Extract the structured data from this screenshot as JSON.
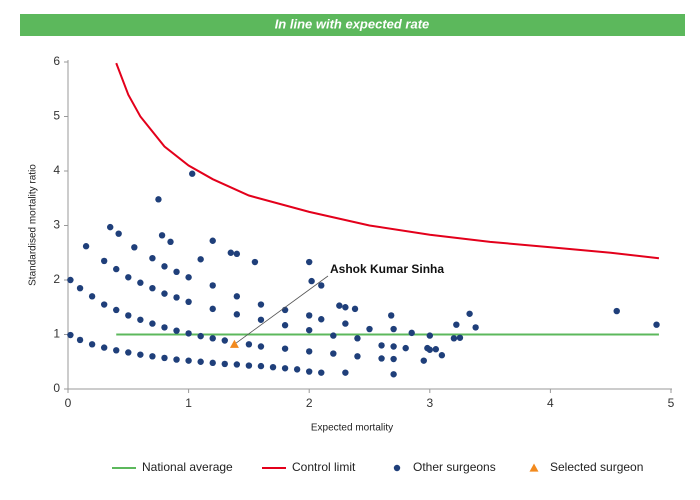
{
  "chart_data": {
    "type": "scatter",
    "banner": "In line with expected rate",
    "xlabel": "Expected mortality",
    "ylabel": "Standardised mortality ratio",
    "xlim": [
      0,
      5
    ],
    "ylim": [
      0,
      6
    ],
    "xticks": [
      0,
      1,
      2,
      3,
      4,
      5
    ],
    "yticks": [
      0,
      1,
      2,
      3,
      4,
      5,
      6
    ],
    "annotation": "Ashok Kumar Sinha",
    "banner_color": "#5cb85c",
    "series": [
      {
        "name": "National average",
        "kind": "line",
        "color": "#5cb85c",
        "x": [
          0.4,
          4.9
        ],
        "values": [
          1,
          1
        ]
      },
      {
        "name": "Control limit",
        "kind": "line",
        "color": "#e3001b",
        "x": [
          0.4,
          0.5,
          0.6,
          0.8,
          1.0,
          1.2,
          1.5,
          2,
          2.5,
          3,
          3.5,
          4,
          4.5,
          4.9
        ],
        "values": [
          5.98,
          5.4,
          5.0,
          4.45,
          4.1,
          3.85,
          3.55,
          3.25,
          3.0,
          2.83,
          2.7,
          2.6,
          2.5,
          2.4
        ]
      },
      {
        "name": "Other surgeons",
        "kind": "points",
        "color": "#1f3f7a",
        "x": [
          0.02,
          0.1,
          0.2,
          0.3,
          0.4,
          0.5,
          0.6,
          0.7,
          0.8,
          0.9,
          1.0,
          1.1,
          1.2,
          1.3,
          1.4,
          1.5,
          1.6,
          1.7,
          1.8,
          1.9,
          2.0,
          2.1,
          2.3,
          2.7,
          0.02,
          0.1,
          0.2,
          0.3,
          0.4,
          0.5,
          0.6,
          0.7,
          0.8,
          0.9,
          1.0,
          1.1,
          1.2,
          1.3,
          1.5,
          1.6,
          1.8,
          2.0,
          2.2,
          2.4,
          2.6,
          2.7,
          0.3,
          0.4,
          0.5,
          0.6,
          0.7,
          0.8,
          0.9,
          1.0,
          1.2,
          1.4,
          1.6,
          1.8,
          2.0,
          2.2,
          2.4,
          2.6,
          2.7,
          2.8,
          3.0,
          3.1,
          0.55,
          0.7,
          0.8,
          0.9,
          1.0,
          1.2,
          1.4,
          1.6,
          1.8,
          2.0,
          2.1,
          2.3,
          2.5,
          2.7,
          3.0,
          3.2,
          0.15,
          0.35,
          0.42,
          0.75,
          0.78,
          0.85,
          1.03,
          1.1,
          1.2,
          1.35,
          1.4,
          1.55,
          2.0,
          2.02,
          2.1,
          2.25,
          2.3,
          2.38,
          2.68,
          2.85,
          2.98,
          3.05,
          3.22,
          3.25,
          3.33,
          3.38,
          4.55,
          4.88,
          2.95
        ],
        "values": [
          0.99,
          0.9,
          0.82,
          0.76,
          0.71,
          0.67,
          0.63,
          0.6,
          0.57,
          0.54,
          0.52,
          0.5,
          0.48,
          0.46,
          0.45,
          0.43,
          0.42,
          0.4,
          0.38,
          0.36,
          0.32,
          0.3,
          0.3,
          0.27,
          2.0,
          1.85,
          1.7,
          1.55,
          1.45,
          1.35,
          1.27,
          1.2,
          1.13,
          1.07,
          1.02,
          0.97,
          0.93,
          0.89,
          0.82,
          0.78,
          0.74,
          0.69,
          0.65,
          0.6,
          0.56,
          0.55,
          2.35,
          2.2,
          2.05,
          1.95,
          1.85,
          1.75,
          1.68,
          1.6,
          1.47,
          1.37,
          1.27,
          1.17,
          1.08,
          0.98,
          0.93,
          0.8,
          0.78,
          0.75,
          0.72,
          0.62,
          2.6,
          2.4,
          2.25,
          2.15,
          2.05,
          1.9,
          1.7,
          1.55,
          1.45,
          1.35,
          1.28,
          1.2,
          1.1,
          1.1,
          0.98,
          0.93,
          2.62,
          2.97,
          2.85,
          3.48,
          2.82,
          2.7,
          3.95,
          2.38,
          2.72,
          2.5,
          2.48,
          2.33,
          2.33,
          1.98,
          1.9,
          1.53,
          1.5,
          1.47,
          1.35,
          1.03,
          0.75,
          0.73,
          1.18,
          0.94,
          1.38,
          1.13,
          1.43,
          1.18,
          0.52
        ]
      },
      {
        "name": "Selected surgeon",
        "kind": "triangle",
        "color": "#f28a1e",
        "x": [
          1.38
        ],
        "values": [
          0.82
        ]
      }
    ]
  }
}
